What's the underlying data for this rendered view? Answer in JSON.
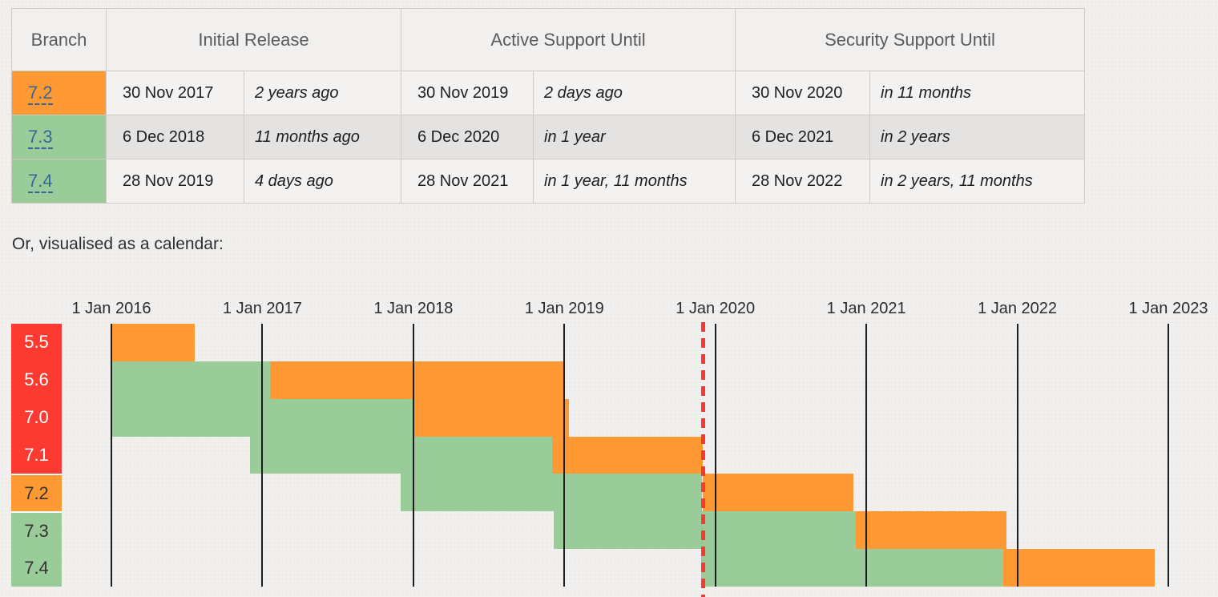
{
  "page": {
    "caption": "Or, visualised as a calendar:"
  },
  "table": {
    "col_headers": {
      "branch": "Branch",
      "initial": "Initial Release",
      "active": "Active Support Until",
      "security": "Security Support Until"
    },
    "rows": [
      {
        "branch": "7.2",
        "color": "orange",
        "initial": {
          "date": "30 Nov 2017",
          "relative": "2 years ago"
        },
        "active": {
          "date": "30 Nov 2019",
          "relative": "2 days ago"
        },
        "security": {
          "date": "30 Nov 2020",
          "relative": "in 11 months"
        }
      },
      {
        "branch": "7.3",
        "color": "green",
        "initial": {
          "date": "6 Dec 2018",
          "relative": "11 months ago"
        },
        "active": {
          "date": "6 Dec 2020",
          "relative": "in 1 year"
        },
        "security": {
          "date": "6 Dec 2021",
          "relative": "in 2 years"
        }
      },
      {
        "branch": "7.4",
        "color": "green",
        "initial": {
          "date": "28 Nov 2019",
          "relative": "4 days ago"
        },
        "active": {
          "date": "28 Nov 2021",
          "relative": "in 1 year, 11 months"
        },
        "security": {
          "date": "28 Nov 2022",
          "relative": "in 2 years, 11 months"
        }
      }
    ]
  },
  "chart_data": {
    "type": "gantt",
    "x_tick_labels": [
      "1 Jan 2016",
      "1 Jan 2017",
      "1 Jan 2018",
      "1 Jan 2019",
      "1 Jan 2020",
      "1 Jan 2021",
      "1 Jan 2022",
      "1 Jan 2023"
    ],
    "x_range_years": [
      2016,
      2023
    ],
    "grid": true,
    "today_marker_year": 2019.917,
    "legend_colors": {
      "active": "#99cc99",
      "security": "#ff9933",
      "eol": "#ff3333"
    },
    "rows": [
      {
        "branch": "5.5",
        "status": "eol",
        "segments": [
          {
            "kind": "security",
            "from": 2016.0,
            "to": 2016.55
          }
        ]
      },
      {
        "branch": "5.6",
        "status": "eol",
        "segments": [
          {
            "kind": "active",
            "from": 2016.0,
            "to": 2017.05
          },
          {
            "kind": "security",
            "from": 2017.05,
            "to": 2019.0
          }
        ]
      },
      {
        "branch": "7.0",
        "status": "eol",
        "segments": [
          {
            "kind": "active",
            "from": 2016.0,
            "to": 2018.0
          },
          {
            "kind": "security",
            "from": 2018.0,
            "to": 2019.03
          }
        ]
      },
      {
        "branch": "7.1",
        "status": "eol",
        "segments": [
          {
            "kind": "active",
            "from": 2016.917,
            "to": 2018.917
          },
          {
            "kind": "security",
            "from": 2018.917,
            "to": 2019.917
          }
        ]
      },
      {
        "branch": "7.2",
        "status": "security",
        "segments": [
          {
            "kind": "active",
            "from": 2017.914,
            "to": 2019.914
          },
          {
            "kind": "security",
            "from": 2019.914,
            "to": 2020.914
          }
        ]
      },
      {
        "branch": "7.3",
        "status": "active",
        "segments": [
          {
            "kind": "active",
            "from": 2018.93,
            "to": 2020.93
          },
          {
            "kind": "security",
            "from": 2020.93,
            "to": 2021.93
          }
        ]
      },
      {
        "branch": "7.4",
        "status": "active",
        "segments": [
          {
            "kind": "active",
            "from": 2019.908,
            "to": 2021.908
          },
          {
            "kind": "security",
            "from": 2021.908,
            "to": 2022.908
          }
        ]
      }
    ]
  }
}
